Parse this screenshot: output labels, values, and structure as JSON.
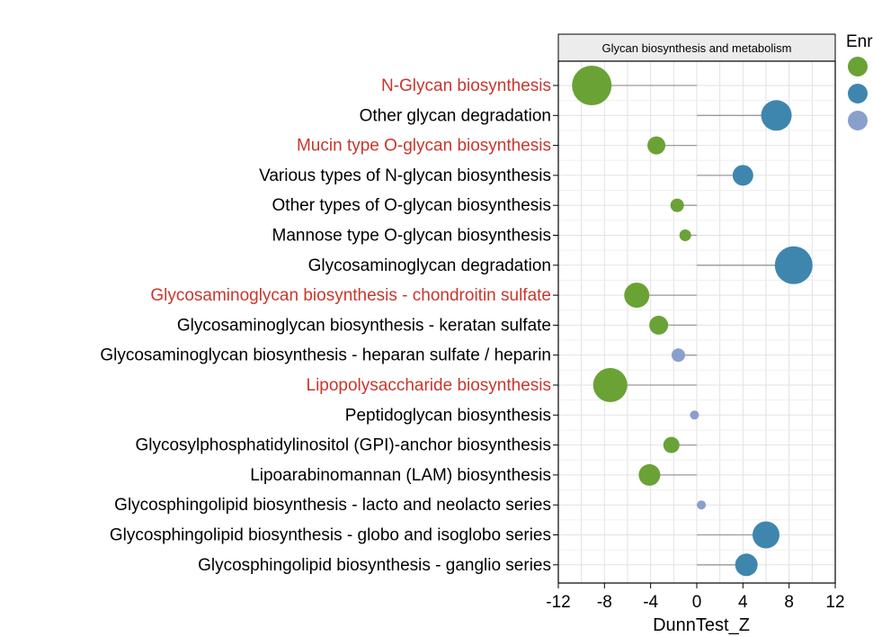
{
  "chart_data": {
    "type": "scatter",
    "subtype": "lollipop-bubble",
    "panel_title": "Glycan biosynthesis and metabolism",
    "xlabel": "DunnTest_Z",
    "xlim": [
      -12,
      12
    ],
    "xticks": [
      -12,
      -8,
      -4,
      0,
      4,
      8,
      12
    ],
    "grid": true,
    "legend_title": "Enr",
    "legend_placement": "right",
    "categories": [
      {
        "name": "N-Glycan biosynthesis",
        "z": -9.1,
        "size": 22,
        "group": "green",
        "highlight": true
      },
      {
        "name": "Other glycan degradation",
        "z": 6.9,
        "size": 17,
        "group": "blue",
        "highlight": false
      },
      {
        "name": "Mucin type O-glycan biosynthesis",
        "z": -3.5,
        "size": 10,
        "group": "green",
        "highlight": true
      },
      {
        "name": "Various types of N-glycan biosynthesis",
        "z": 4.0,
        "size": 11.5,
        "group": "blue",
        "highlight": false
      },
      {
        "name": "Other types of O-glycan biosynthesis",
        "z": -1.7,
        "size": 7.5,
        "group": "green",
        "highlight": false
      },
      {
        "name": "Mannose type O-glycan biosynthesis",
        "z": -1.0,
        "size": 6.5,
        "group": "green",
        "highlight": false
      },
      {
        "name": "Glycosaminoglycan degradation",
        "z": 8.4,
        "size": 21,
        "group": "blue",
        "highlight": false
      },
      {
        "name": "Glycosaminoglycan biosynthesis - chondroitin sulfate",
        "z": -5.2,
        "size": 14,
        "group": "green",
        "highlight": true
      },
      {
        "name": "Glycosaminoglycan biosynthesis - keratan sulfate",
        "z": -3.3,
        "size": 10.5,
        "group": "green",
        "highlight": false
      },
      {
        "name": "Glycosaminoglycan biosynthesis - heparan sulfate / heparin",
        "z": -1.6,
        "size": 7.5,
        "group": "lightblue",
        "highlight": false
      },
      {
        "name": "Lipopolysaccharide biosynthesis",
        "z": -7.5,
        "size": 19,
        "group": "green",
        "highlight": true
      },
      {
        "name": "Peptidoglycan biosynthesis",
        "z": -0.2,
        "size": 5,
        "group": "lightblue",
        "highlight": false
      },
      {
        "name": "Glycosylphosphatidylinositol (GPI)-anchor biosynthesis",
        "z": -2.2,
        "size": 9,
        "group": "green",
        "highlight": false
      },
      {
        "name": "Lipoarabinomannan (LAM) biosynthesis",
        "z": -4.1,
        "size": 12,
        "group": "green",
        "highlight": false
      },
      {
        "name": "Glycosphingolipid biosynthesis - lacto and neolacto series",
        "z": 0.4,
        "size": 5,
        "group": "lightblue",
        "highlight": false
      },
      {
        "name": "Glycosphingolipid biosynthesis - globo and isoglobo series",
        "z": 6.0,
        "size": 15,
        "group": "blue",
        "highlight": false
      },
      {
        "name": "Glycosphingolipid biosynthesis - ganglio series",
        "z": 4.3,
        "size": 12.5,
        "group": "blue",
        "highlight": false
      }
    ]
  },
  "colors": {
    "green": "#6aa236",
    "blue": "#3f86ae",
    "lightblue": "#8aa0cc",
    "highlight_text": "#c8372d",
    "normal_text": "#000000",
    "stem": "#9a9a9a",
    "grid": "#e2e2e2"
  },
  "legend": {
    "swatches": [
      "green",
      "blue",
      "lightblue"
    ]
  }
}
